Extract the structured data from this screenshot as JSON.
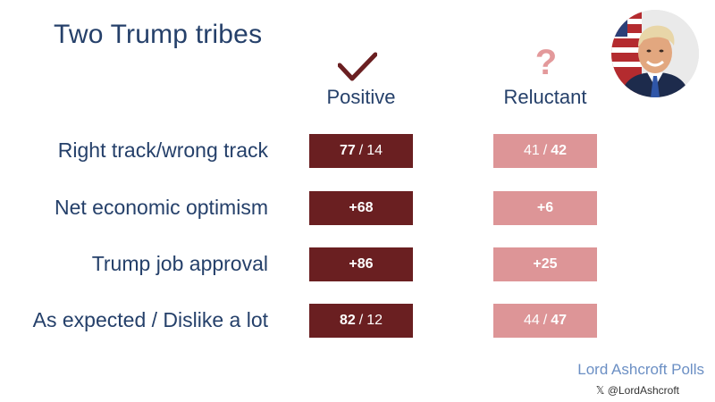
{
  "title": "Two Trump tribes",
  "columns": {
    "positive": {
      "label": "Positive",
      "icon": "check-icon"
    },
    "reluctant": {
      "label": "Reluctant",
      "icon": "question-icon",
      "glyph": "?"
    }
  },
  "rows": [
    {
      "label": "Right track/wrong track",
      "positive": {
        "a": "77",
        "sep": "/",
        "b": "14"
      },
      "reluctant": {
        "a": "41",
        "sep": "/",
        "b": "42"
      }
    },
    {
      "label": "Net economic optimism",
      "positive": {
        "value": "+68"
      },
      "reluctant": {
        "value": "+6"
      }
    },
    {
      "label": "Trump job approval",
      "positive": {
        "value": "+86"
      },
      "reluctant": {
        "value": "+25"
      }
    },
    {
      "label": "As expected / Dislike a lot",
      "positive": {
        "a": "82",
        "sep": "/",
        "b": "12"
      },
      "reluctant": {
        "a": "44",
        "sep": "/",
        "b": "47"
      }
    }
  ],
  "footer": {
    "brand": "Lord Ashcroft Polls",
    "handle": "𝕏 @LordAshcroft"
  },
  "colors": {
    "positive": "#6a1f21",
    "reluctant": "#dd9597",
    "text": "#25406a"
  }
}
